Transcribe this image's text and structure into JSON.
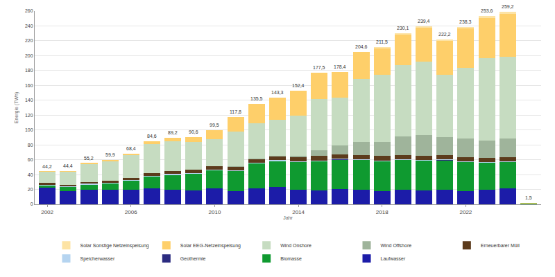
{
  "chart_data": {
    "type": "bar",
    "stacked": true,
    "x_label": "Jahr",
    "y_label": "Energie (TWh)",
    "x": [
      2002,
      2003,
      2004,
      2005,
      2006,
      2007,
      2008,
      2009,
      2010,
      2011,
      2012,
      2013,
      2014,
      2015,
      2016,
      2017,
      2018,
      2019,
      2020,
      2021,
      2022,
      2023,
      2024,
      2025
    ],
    "xlim": [
      2001.4,
      2025.6
    ],
    "xticks": [
      2002,
      2006,
      2010,
      2014,
      2018,
      2022
    ],
    "ylim": [
      0,
      260
    ],
    "yticks": [
      0,
      20,
      40,
      60,
      80,
      100,
      120,
      140,
      160,
      180,
      200,
      220,
      240,
      260
    ],
    "grid": true,
    "legend": "bottom",
    "series": [
      {
        "name": "Laufwasser",
        "color": "#1c1ca8",
        "values": [
          22,
          18,
          20,
          19.5,
          20,
          21,
          20,
          19,
          21,
          17.7,
          21.8,
          23,
          19.6,
          18.9,
          20.5,
          20,
          18,
          19.7,
          18.7,
          19.6,
          17.6,
          19.5,
          21,
          0.7
        ]
      },
      {
        "name": "Biomasse",
        "color": "#0f9a30",
        "values": [
          4,
          6,
          7,
          9,
          12,
          16.5,
          20,
          22.5,
          25,
          27.5,
          34,
          35.5,
          38,
          39.5,
          40,
          40,
          40,
          40,
          40.5,
          40,
          39.5,
          37,
          36.5,
          0.4
        ]
      },
      {
        "name": "Geothermie",
        "color": "#2b2b80",
        "values": [
          0,
          0,
          0,
          0,
          0,
          0,
          0,
          0,
          0,
          0,
          0,
          0.1,
          0.1,
          0.1,
          0.2,
          0.2,
          0.2,
          0.2,
          0.2,
          0.2,
          0.2,
          0.2,
          0.2,
          0
        ]
      },
      {
        "name": "Speicherwasser",
        "color": "#b5d4f0",
        "values": [
          0.7,
          0.6,
          0.6,
          0.6,
          0.6,
          0.6,
          0.6,
          0.5,
          0.5,
          0.4,
          0.5,
          0.6,
          0.5,
          0.5,
          0.5,
          0.5,
          0.4,
          0.5,
          0.5,
          0.4,
          0.4,
          0.5,
          0.5,
          0
        ]
      },
      {
        "name": "Erneuerbarer Müll",
        "color": "#5c3b1c",
        "values": [
          1.8,
          1.9,
          2.1,
          2.5,
          3,
          4,
          4.5,
          4.5,
          4.8,
          4.8,
          4.9,
          5.4,
          6,
          5.8,
          5.9,
          5.8,
          6.2,
          5.8,
          5.8,
          5.8,
          5.9,
          5.2,
          5.2,
          0.1
        ]
      },
      {
        "name": "Wind Offshore",
        "color": "#9fb49b",
        "values": [
          0,
          0,
          0,
          0,
          0,
          0,
          0,
          0,
          0.2,
          0.6,
          0.7,
          0.9,
          1.4,
          8.3,
          12.3,
          17.7,
          19.5,
          24.7,
          27.3,
          24.4,
          25.1,
          23.5,
          25.5,
          0.1
        ]
      },
      {
        "name": "Wind Onshore",
        "color": "#c6dcc1",
        "values": [
          15.5,
          17.6,
          24.9,
          27.0,
          30.6,
          39.4,
          39.7,
          37.5,
          36.3,
          47.2,
          47.2,
          48.1,
          53.8,
          69.0,
          64.0,
          84.4,
          90.2,
          96.7,
          99.4,
          84.3,
          94.6,
          111.2,
          109.8,
          0.1
        ]
      },
      {
        "name": "Solar EEG-Netzeinspeisung",
        "color": "#fecf6a",
        "values": [
          0.2,
          0.3,
          0.6,
          1.3,
          2.2,
          3.1,
          4.4,
          6.6,
          11.7,
          19.6,
          26.4,
          29.7,
          33,
          35.4,
          35,
          36,
          36,
          41,
          45,
          45.5,
          53,
          54,
          57.5,
          0.1
        ]
      },
      {
        "name": "Solar Sonstige Netzeinspeisung",
        "color": "#fde3a4",
        "values": [
          0,
          0,
          0,
          0,
          0,
          0,
          0,
          0,
          0,
          0,
          0,
          0,
          0,
          0,
          0,
          0,
          1,
          1.5,
          2,
          2,
          2,
          2.5,
          3,
          0
        ]
      }
    ],
    "totals": {
      "values": [
        44.2,
        44.4,
        55.2,
        59.9,
        68.4,
        84.6,
        89.2,
        90.6,
        99.5,
        117.8,
        135.5,
        143.3,
        152.4,
        177.5,
        178.4,
        204.6,
        211.5,
        230.1,
        239.4,
        222.2,
        238.3,
        253.6,
        259.2,
        1.5
      ],
      "value_labels": [
        "44,2",
        "44,4",
        "55,2",
        "59,9",
        "68,4",
        "84,6",
        "89,2",
        "90,6",
        "99,5",
        "117,8",
        "135,5",
        "143,3",
        "152,4",
        "177,5",
        "178,4",
        "204,6",
        "211,5",
        "230,1",
        "239,4",
        "222,2",
        "238,3",
        "253,6",
        "259,2",
        "1,5"
      ]
    }
  }
}
